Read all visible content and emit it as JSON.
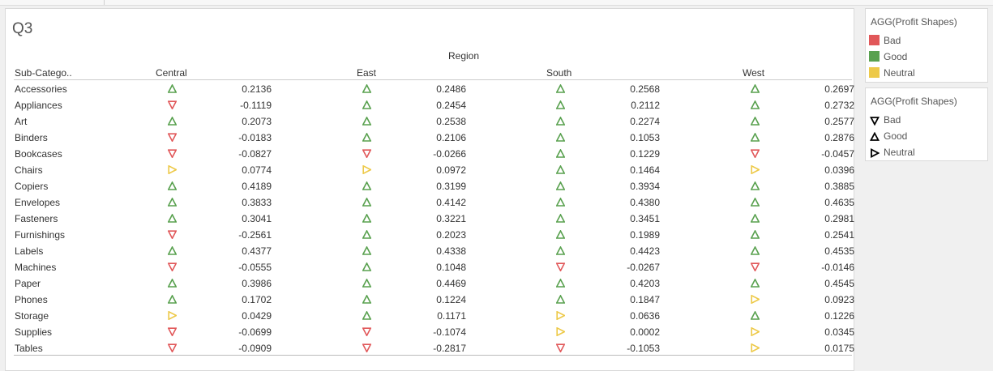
{
  "sheet": {
    "title": "Q3",
    "region_header": "Region",
    "column_headers": {
      "subcategory": "Sub-Catego..",
      "central": "Central",
      "east": "East",
      "south": "South",
      "west": "West"
    },
    "rows": [
      {
        "name": "Accessories",
        "central": {
          "shape": "good",
          "value": "0.2136"
        },
        "east": {
          "shape": "good",
          "value": "0.2486"
        },
        "south": {
          "shape": "good",
          "value": "0.2568"
        },
        "west": {
          "shape": "good",
          "value": "0.2697"
        }
      },
      {
        "name": "Appliances",
        "central": {
          "shape": "bad",
          "value": "-0.1119"
        },
        "east": {
          "shape": "good",
          "value": "0.2454"
        },
        "south": {
          "shape": "good",
          "value": "0.2112"
        },
        "west": {
          "shape": "good",
          "value": "0.2732"
        }
      },
      {
        "name": "Art",
        "central": {
          "shape": "good",
          "value": "0.2073"
        },
        "east": {
          "shape": "good",
          "value": "0.2538"
        },
        "south": {
          "shape": "good",
          "value": "0.2274"
        },
        "west": {
          "shape": "good",
          "value": "0.2577"
        }
      },
      {
        "name": "Binders",
        "central": {
          "shape": "bad",
          "value": "-0.0183"
        },
        "east": {
          "shape": "good",
          "value": "0.2106"
        },
        "south": {
          "shape": "good",
          "value": "0.1053"
        },
        "west": {
          "shape": "good",
          "value": "0.2876"
        }
      },
      {
        "name": "Bookcases",
        "central": {
          "shape": "bad",
          "value": "-0.0827"
        },
        "east": {
          "shape": "bad",
          "value": "-0.0266"
        },
        "south": {
          "shape": "good",
          "value": "0.1229"
        },
        "west": {
          "shape": "bad",
          "value": "-0.0457"
        }
      },
      {
        "name": "Chairs",
        "central": {
          "shape": "neutral",
          "value": "0.0774"
        },
        "east": {
          "shape": "neutral",
          "value": "0.0972"
        },
        "south": {
          "shape": "good",
          "value": "0.1464"
        },
        "west": {
          "shape": "neutral",
          "value": "0.0396"
        }
      },
      {
        "name": "Copiers",
        "central": {
          "shape": "good",
          "value": "0.4189"
        },
        "east": {
          "shape": "good",
          "value": "0.3199"
        },
        "south": {
          "shape": "good",
          "value": "0.3934"
        },
        "west": {
          "shape": "good",
          "value": "0.3885"
        }
      },
      {
        "name": "Envelopes",
        "central": {
          "shape": "good",
          "value": "0.3833"
        },
        "east": {
          "shape": "good",
          "value": "0.4142"
        },
        "south": {
          "shape": "good",
          "value": "0.4380"
        },
        "west": {
          "shape": "good",
          "value": "0.4635"
        }
      },
      {
        "name": "Fasteners",
        "central": {
          "shape": "good",
          "value": "0.3041"
        },
        "east": {
          "shape": "good",
          "value": "0.3221"
        },
        "south": {
          "shape": "good",
          "value": "0.3451"
        },
        "west": {
          "shape": "good",
          "value": "0.2981"
        }
      },
      {
        "name": "Furnishings",
        "central": {
          "shape": "bad",
          "value": "-0.2561"
        },
        "east": {
          "shape": "good",
          "value": "0.2023"
        },
        "south": {
          "shape": "good",
          "value": "0.1989"
        },
        "west": {
          "shape": "good",
          "value": "0.2541"
        }
      },
      {
        "name": "Labels",
        "central": {
          "shape": "good",
          "value": "0.4377"
        },
        "east": {
          "shape": "good",
          "value": "0.4338"
        },
        "south": {
          "shape": "good",
          "value": "0.4423"
        },
        "west": {
          "shape": "good",
          "value": "0.4535"
        }
      },
      {
        "name": "Machines",
        "central": {
          "shape": "bad",
          "value": "-0.0555"
        },
        "east": {
          "shape": "good",
          "value": "0.1048"
        },
        "south": {
          "shape": "bad",
          "value": "-0.0267"
        },
        "west": {
          "shape": "bad",
          "value": "-0.0146"
        }
      },
      {
        "name": "Paper",
        "central": {
          "shape": "good",
          "value": "0.3986"
        },
        "east": {
          "shape": "good",
          "value": "0.4469"
        },
        "south": {
          "shape": "good",
          "value": "0.4203"
        },
        "west": {
          "shape": "good",
          "value": "0.4545"
        }
      },
      {
        "name": "Phones",
        "central": {
          "shape": "good",
          "value": "0.1702"
        },
        "east": {
          "shape": "good",
          "value": "0.1224"
        },
        "south": {
          "shape": "good",
          "value": "0.1847"
        },
        "west": {
          "shape": "neutral",
          "value": "0.0923"
        }
      },
      {
        "name": "Storage",
        "central": {
          "shape": "neutral",
          "value": "0.0429"
        },
        "east": {
          "shape": "good",
          "value": "0.1171"
        },
        "south": {
          "shape": "neutral",
          "value": "0.0636"
        },
        "west": {
          "shape": "good",
          "value": "0.1226"
        }
      },
      {
        "name": "Supplies",
        "central": {
          "shape": "bad",
          "value": "-0.0699"
        },
        "east": {
          "shape": "bad",
          "value": "-0.1074"
        },
        "south": {
          "shape": "neutral",
          "value": "0.0002"
        },
        "west": {
          "shape": "neutral",
          "value": "0.0345"
        }
      },
      {
        "name": "Tables",
        "central": {
          "shape": "bad",
          "value": "-0.0909"
        },
        "east": {
          "shape": "bad",
          "value": "-0.2817"
        },
        "south": {
          "shape": "bad",
          "value": "-0.1053"
        },
        "west": {
          "shape": "neutral",
          "value": "0.0175"
        }
      }
    ]
  },
  "legend_color": {
    "title": "AGG(Profit Shapes)",
    "items": [
      {
        "key": "bad",
        "label": "Bad",
        "color": "#e15759"
      },
      {
        "key": "good",
        "label": "Good",
        "color": "#59a14f"
      },
      {
        "key": "neutral",
        "label": "Neutral",
        "color": "#edc948"
      }
    ]
  },
  "legend_shape": {
    "title": "AGG(Profit Shapes)",
    "items": [
      {
        "key": "bad",
        "label": "Bad",
        "icon": "triangle-down-icon"
      },
      {
        "key": "good",
        "label": "Good",
        "icon": "triangle-up-icon"
      },
      {
        "key": "neutral",
        "label": "Neutral",
        "icon": "triangle-right-icon"
      }
    ]
  },
  "colors": {
    "bad": "#e15759",
    "good": "#59a14f",
    "neutral": "#edc948"
  }
}
